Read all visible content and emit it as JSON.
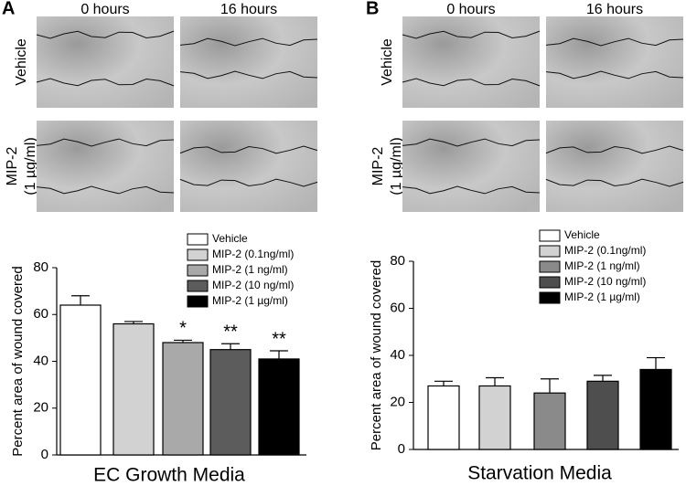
{
  "panels": [
    {
      "label": "A",
      "columns": [
        "0 hours",
        "16 hours"
      ],
      "rows": [
        {
          "label": [
            "Vehicle"
          ]
        },
        {
          "label": [
            "MIP-2",
            "(1 µg/ml)"
          ]
        }
      ]
    },
    {
      "label": "B",
      "columns": [
        "0 hours",
        "16 hours"
      ],
      "rows": [
        {
          "label": [
            "Vehicle"
          ]
        },
        {
          "label": [
            "MIP-2",
            "(1 µg/ml)"
          ]
        }
      ]
    }
  ],
  "chart_data": [
    {
      "type": "bar",
      "title": "EC Growth Media",
      "y_label": "Percent area of wound covered",
      "ylim": [
        0,
        80
      ],
      "yticks": [
        0,
        20,
        40,
        60,
        80
      ],
      "legend": "top-right",
      "series": [
        {
          "name": "Vehicle",
          "color": "#ffffff",
          "values": [
            64
          ],
          "errors": [
            4
          ]
        },
        {
          "name": "MIP-2 (0.1ng/ml)",
          "color": "#d2d2d2",
          "values": [
            56
          ],
          "errors": [
            1
          ]
        },
        {
          "name": "MIP-2 (1 ng/ml)",
          "color": "#a9a9a9",
          "values": [
            48
          ],
          "errors": [
            1
          ],
          "annotation": "*"
        },
        {
          "name": "MIP-2 (10 ng/ml)",
          "color": "#5c5c5c",
          "values": [
            45
          ],
          "errors": [
            2.5
          ],
          "annotation": "**"
        },
        {
          "name": "MIP-2 (1 µg/ml)",
          "color": "#000000",
          "values": [
            41
          ],
          "errors": [
            3.5
          ],
          "annotation": "**"
        }
      ]
    },
    {
      "type": "bar",
      "title": "Starvation Media",
      "y_label": "Percent area of wound covered",
      "ylim": [
        0,
        80
      ],
      "yticks": [
        0,
        20,
        40,
        60,
        80
      ],
      "legend": "top-right",
      "series": [
        {
          "name": "Vehicle",
          "color": "#ffffff",
          "values": [
            27
          ],
          "errors": [
            2
          ]
        },
        {
          "name": "MIP-2 (0.1ng/ml)",
          "color": "#d2d2d2",
          "values": [
            27
          ],
          "errors": [
            3.5
          ]
        },
        {
          "name": "MIP-2 (1 ng/ml)",
          "color": "#8a8a8a",
          "values": [
            24
          ],
          "errors": [
            6
          ]
        },
        {
          "name": "MIP-2 (10 ng/ml)",
          "color": "#4e4e4e",
          "values": [
            29
          ],
          "errors": [
            2.5
          ]
        },
        {
          "name": "MIP-2 (1 µg/ml)",
          "color": "#000000",
          "values": [
            34
          ],
          "errors": [
            5
          ]
        }
      ]
    }
  ]
}
